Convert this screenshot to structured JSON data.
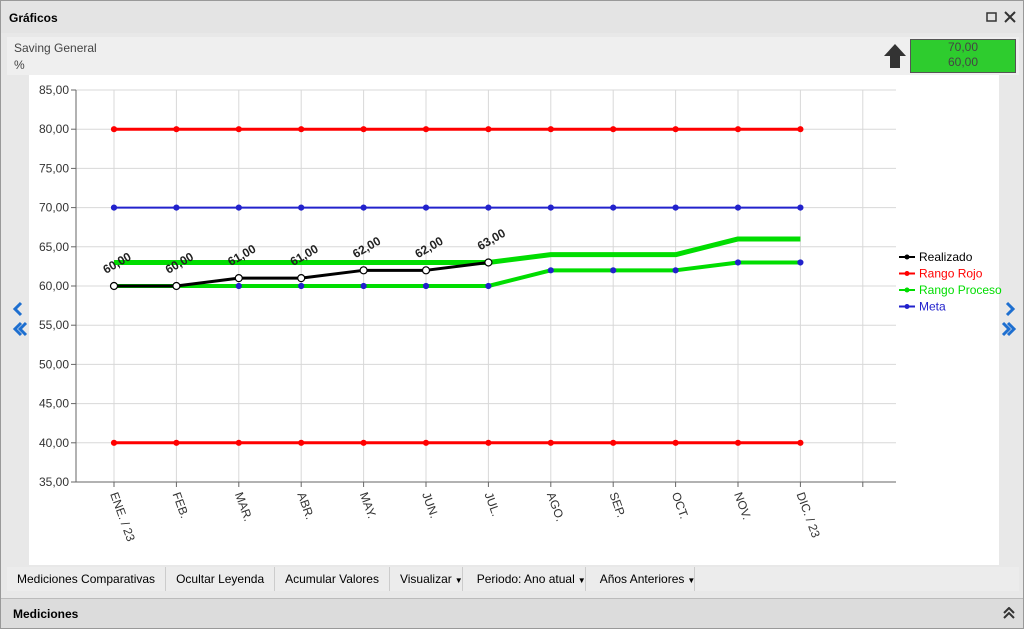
{
  "window": {
    "title": "Gráficos"
  },
  "header": {
    "title": "Saving General",
    "unit": "%",
    "indicator": [
      "70,00",
      "60,00"
    ]
  },
  "toolbar": [
    "Mediciones Comparativas",
    "Ocultar Leyenda",
    "Acumular Valores",
    "Visualizar",
    "Periodo: Ano atual",
    "Años Anteriores"
  ],
  "footer": {
    "title": "Mediciones"
  },
  "chart_data": {
    "type": "line",
    "categories": [
      "ENE. / 23",
      "FEB.",
      "MAR.",
      "ABR.",
      "MAY.",
      "JUN.",
      "JUL.",
      "AGO.",
      "SEP.",
      "OCT.",
      "NOV.",
      "DIC. / 23",
      null
    ],
    "ylim": [
      35,
      85
    ],
    "yticks": [
      {
        "value": 35,
        "label": "35,00"
      },
      {
        "value": 40,
        "label": "40,00"
      },
      {
        "value": 45,
        "label": "45,00"
      },
      {
        "value": 50,
        "label": "50,00"
      },
      {
        "value": 55,
        "label": "55,00"
      },
      {
        "value": 60,
        "label": "60,00"
      },
      {
        "value": 65,
        "label": "65,00"
      },
      {
        "value": 70,
        "label": "70,00"
      },
      {
        "value": 75,
        "label": "75,00"
      },
      {
        "value": 80,
        "label": "80,00"
      },
      {
        "value": 85,
        "label": "85,00"
      }
    ],
    "grid": true,
    "legend": "right",
    "series": [
      {
        "name": "Realizado",
        "color": "#000000",
        "values": [
          60,
          60,
          61,
          61,
          62,
          62,
          63,
          null,
          null,
          null,
          null,
          null,
          null
        ],
        "value_labels": [
          "60,00",
          "60,00",
          "61,00",
          "61,00",
          "62,00",
          "62,00",
          "63,00",
          null,
          null,
          null,
          null,
          null,
          null
        ]
      },
      {
        "name": "Rango Rojo",
        "color": "#ff0000",
        "values": [
          80,
          80,
          80,
          80,
          80,
          80,
          80,
          80,
          80,
          80,
          80,
          80,
          null
        ],
        "low_values": [
          40,
          40,
          40,
          40,
          40,
          40,
          40,
          40,
          40,
          40,
          40,
          40,
          null
        ]
      },
      {
        "name": "Rango Proceso",
        "color": "#00dd00",
        "values": [
          63,
          63,
          63,
          63,
          63,
          63,
          63,
          64,
          64,
          64,
          66,
          66,
          null
        ],
        "low_values": [
          60,
          60,
          60,
          60,
          60,
          60,
          60,
          62,
          62,
          62,
          63,
          63,
          null
        ]
      },
      {
        "name": "Meta",
        "color": "#2222cc",
        "values": [
          70,
          70,
          70,
          70,
          70,
          70,
          70,
          70,
          70,
          70,
          70,
          70,
          null
        ]
      }
    ]
  }
}
